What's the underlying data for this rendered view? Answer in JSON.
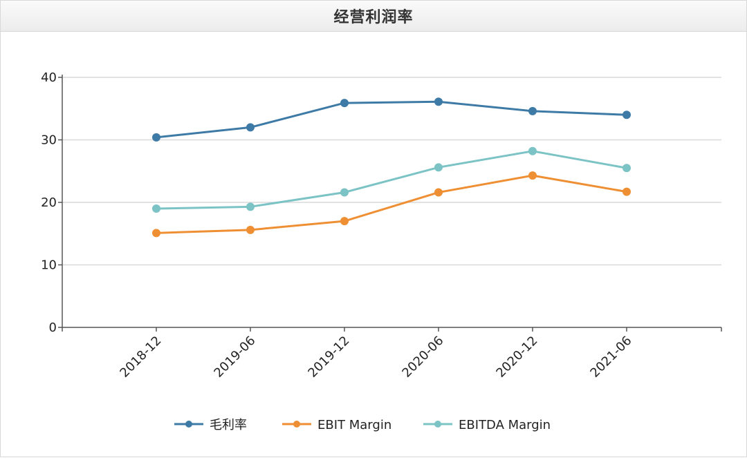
{
  "header": {
    "title": "经营利润率"
  },
  "chart_data": {
    "type": "line",
    "categories": [
      "2018-12",
      "2019-06",
      "2019-12",
      "2020-06",
      "2020-12",
      "2021-06"
    ],
    "series": [
      {
        "name": "毛利率",
        "color": "#3d7aa6",
        "values": [
          30.4,
          32.0,
          35.9,
          36.1,
          34.6,
          34.0
        ]
      },
      {
        "name": "EBIT Margin",
        "color": "#ef8f33",
        "values": [
          15.1,
          15.6,
          17.0,
          21.6,
          24.3,
          21.7
        ]
      },
      {
        "name": "EBITDA Margin",
        "color": "#7cc3c5",
        "values": [
          19.0,
          19.3,
          21.6,
          25.6,
          28.2,
          25.5
        ]
      }
    ],
    "y_ticks": [
      "0",
      "10",
      "20",
      "30",
      "40"
    ],
    "ylim": [
      0,
      40
    ],
    "grid": true,
    "legend_position": "bottom-center",
    "title": "经营利润率",
    "xlabel": "",
    "ylabel": ""
  }
}
